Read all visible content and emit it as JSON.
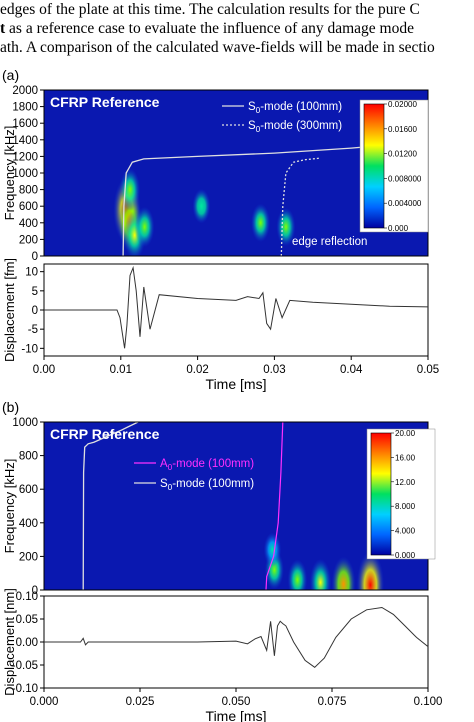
{
  "header_text": {
    "line1": "edges of the plate at this time. The calculation results for the pure C",
    "line2_bold": "t",
    "line2": " as a reference case to evaluate the influence of any damage mode",
    "line3": "ath. A comparison of the calculated wave-fields will be made in sectio"
  },
  "chart_data": [
    {
      "panel_label": "(a)",
      "type": "heatmap",
      "title": "CFRP Reference",
      "xlim": [
        0.0,
        0.05
      ],
      "ylim": [
        0,
        2000
      ],
      "ylabel": "Frequency [kHz]",
      "yticks": [
        "0",
        "200",
        "400",
        "600",
        "800",
        "1000",
        "1200",
        "1400",
        "1600",
        "1800",
        "2000"
      ],
      "yticks_values": [
        0,
        200,
        400,
        600,
        800,
        1000,
        1200,
        1400,
        1600,
        1800,
        2000
      ],
      "colorbar": {
        "labels": [
          "0.000",
          "0.004000",
          "0.008000",
          "0.01200",
          "0.01600",
          "0.02000"
        ],
        "colors": [
          "#0000a0",
          "#0066ff",
          "#00d0ff",
          "#00e060",
          "#ffff00",
          "#ff8000",
          "#ff0000"
        ]
      },
      "legend": [
        {
          "name": "S0-mode (100mm)",
          "base": "S",
          "sub": "0",
          "rest": "-mode (100mm)",
          "style": "solid"
        },
        {
          "name": "S0-mode (300mm)",
          "base": "S",
          "sub": "0",
          "rest": "-mode (300mm)",
          "style": "dotted"
        }
      ],
      "annotation": "edge reflection",
      "series": [
        {
          "name": "S0-mode (100mm)",
          "style": "solid",
          "x": [
            0.0103,
            0.0104,
            0.0107,
            0.0115,
            0.013,
            0.02,
            0.03,
            0.04,
            0.05
          ],
          "y": [
            0,
            600,
            1000,
            1130,
            1170,
            1200,
            1240,
            1300,
            1380
          ]
        },
        {
          "name": "S0-mode (300mm)",
          "style": "dotted",
          "x": [
            0.0309,
            0.0311,
            0.0315,
            0.0325,
            0.034,
            0.036
          ],
          "y": [
            0,
            600,
            1000,
            1130,
            1160,
            1180
          ]
        }
      ],
      "blobs": [
        {
          "t": 0.0108,
          "f": 550,
          "level": 1.0
        },
        {
          "t": 0.0112,
          "f": 400,
          "level": 0.75
        },
        {
          "t": 0.0118,
          "f": 250,
          "level": 0.55
        },
        {
          "t": 0.0131,
          "f": 350,
          "level": 0.35
        },
        {
          "t": 0.0112,
          "f": 800,
          "level": 0.4
        },
        {
          "t": 0.0282,
          "f": 400,
          "level": 0.3
        },
        {
          "t": 0.0315,
          "f": 350,
          "level": 0.3
        },
        {
          "t": 0.0205,
          "f": 600,
          "level": 0.2
        }
      ]
    },
    {
      "type": "line",
      "ylabel": "Displacement [fm]",
      "xlabel": "Time [ms]",
      "xlim": [
        0.0,
        0.05
      ],
      "ylim": [
        -12,
        12
      ],
      "xticks": [
        "0.00",
        "0.01",
        "0.02",
        "0.03",
        "0.04",
        "0.05"
      ],
      "xticks_values": [
        0.0,
        0.01,
        0.02,
        0.03,
        0.04,
        0.05
      ],
      "yticks": [
        "-10",
        "-5",
        "0",
        "5",
        "10"
      ],
      "yticks_values": [
        -10,
        -5,
        0,
        5,
        10
      ],
      "series": [
        {
          "x": [
            0.0,
            0.0095,
            0.0099,
            0.0102,
            0.0105,
            0.0108,
            0.0112,
            0.0116,
            0.012,
            0.0125,
            0.013,
            0.0138,
            0.015,
            0.02,
            0.025,
            0.0265,
            0.028,
            0.0285,
            0.029,
            0.0295,
            0.0302,
            0.031,
            0.032,
            0.035,
            0.04,
            0.045,
            0.05
          ],
          "y": [
            0,
            0,
            -2,
            -6,
            -10,
            -4,
            9,
            11,
            5,
            -7,
            6,
            -5,
            4,
            3,
            2.5,
            3.5,
            3,
            4.5,
            -3.5,
            -5,
            3,
            -2,
            2.5,
            2,
            1.5,
            1.0,
            0.8
          ]
        }
      ]
    },
    {
      "panel_label": "(b)",
      "type": "heatmap",
      "title": "CFRP Reference",
      "xlim": [
        0.0,
        0.1
      ],
      "ylim": [
        0,
        1000
      ],
      "ylabel": "Frequency [kHz]",
      "yticks": [
        "0",
        "200",
        "400",
        "600",
        "800",
        "1000"
      ],
      "yticks_values": [
        0,
        200,
        400,
        600,
        800,
        1000
      ],
      "colorbar": {
        "labels": [
          "0.000",
          "4.000",
          "8.000",
          "12.00",
          "16.00",
          "20.00"
        ],
        "colors": [
          "#0000a0",
          "#0066ff",
          "#00d0ff",
          "#00e060",
          "#ffff00",
          "#ff8000",
          "#ff0000"
        ]
      },
      "legend": [
        {
          "name": "A0-mode (100mm)",
          "base": "A",
          "sub": "0",
          "rest": "-mode (100mm)",
          "style": "magenta"
        },
        {
          "name": "S0-mode (100mm)",
          "base": "S",
          "sub": "0",
          "rest": "-mode (100mm)",
          "style": "solid"
        }
      ],
      "series": [
        {
          "name": "A0-mode (100mm)",
          "style": "magenta",
          "x": [
            0.0622,
            0.0617,
            0.061,
            0.0598,
            0.058,
            0.0578
          ],
          "y": [
            1000,
            700,
            400,
            200,
            80,
            0
          ]
        },
        {
          "name": "S0-mode (100mm)",
          "style": "solid",
          "x": [
            0.0102,
            0.0103,
            0.0106,
            0.0115,
            0.013,
            0.02,
            0.0245
          ],
          "y": [
            0,
            700,
            850,
            870,
            880,
            950,
            1000
          ]
        }
      ],
      "blobs": [
        {
          "t": 0.085,
          "f": 30,
          "level": 1.0
        },
        {
          "t": 0.078,
          "f": 35,
          "level": 0.7
        },
        {
          "t": 0.072,
          "f": 45,
          "level": 0.5
        },
        {
          "t": 0.066,
          "f": 60,
          "level": 0.35
        },
        {
          "t": 0.06,
          "f": 120,
          "level": 0.3
        },
        {
          "t": 0.0595,
          "f": 240,
          "level": 0.18
        }
      ]
    },
    {
      "type": "line",
      "ylabel": "Displacement [nm]",
      "xlabel": "Time [ms]",
      "xlim": [
        0.0,
        0.1
      ],
      "ylim": [
        -0.1,
        0.1
      ],
      "xticks": [
        "0.000",
        "0.025",
        "0.050",
        "0.075",
        "0.100"
      ],
      "xticks_values": [
        0.0,
        0.025,
        0.05,
        0.075,
        0.1
      ],
      "yticks": [
        "-0.10",
        "-0.05",
        "0.00",
        "0.05",
        "0.10"
      ],
      "yticks_values": [
        -0.1,
        -0.05,
        0.0,
        0.05,
        0.1
      ],
      "series": [
        {
          "x": [
            0.0,
            0.0095,
            0.0102,
            0.0108,
            0.0115,
            0.02,
            0.04,
            0.05,
            0.053,
            0.055,
            0.0565,
            0.058,
            0.059,
            0.06,
            0.0608,
            0.0615,
            0.0622,
            0.063,
            0.065,
            0.068,
            0.0705,
            0.073,
            0.076,
            0.08,
            0.084,
            0.088,
            0.091,
            0.094,
            0.097,
            0.1
          ],
          "y": [
            0,
            0,
            0.008,
            -0.006,
            0,
            0,
            0,
            0.002,
            -0.004,
            0.007,
            0.012,
            -0.018,
            0.045,
            -0.03,
            0.035,
            0.045,
            0.04,
            0.035,
            0.0,
            -0.04,
            -0.055,
            -0.035,
            0.01,
            0.05,
            0.07,
            0.075,
            0.06,
            0.035,
            0.01,
            -0.01
          ]
        }
      ]
    }
  ]
}
